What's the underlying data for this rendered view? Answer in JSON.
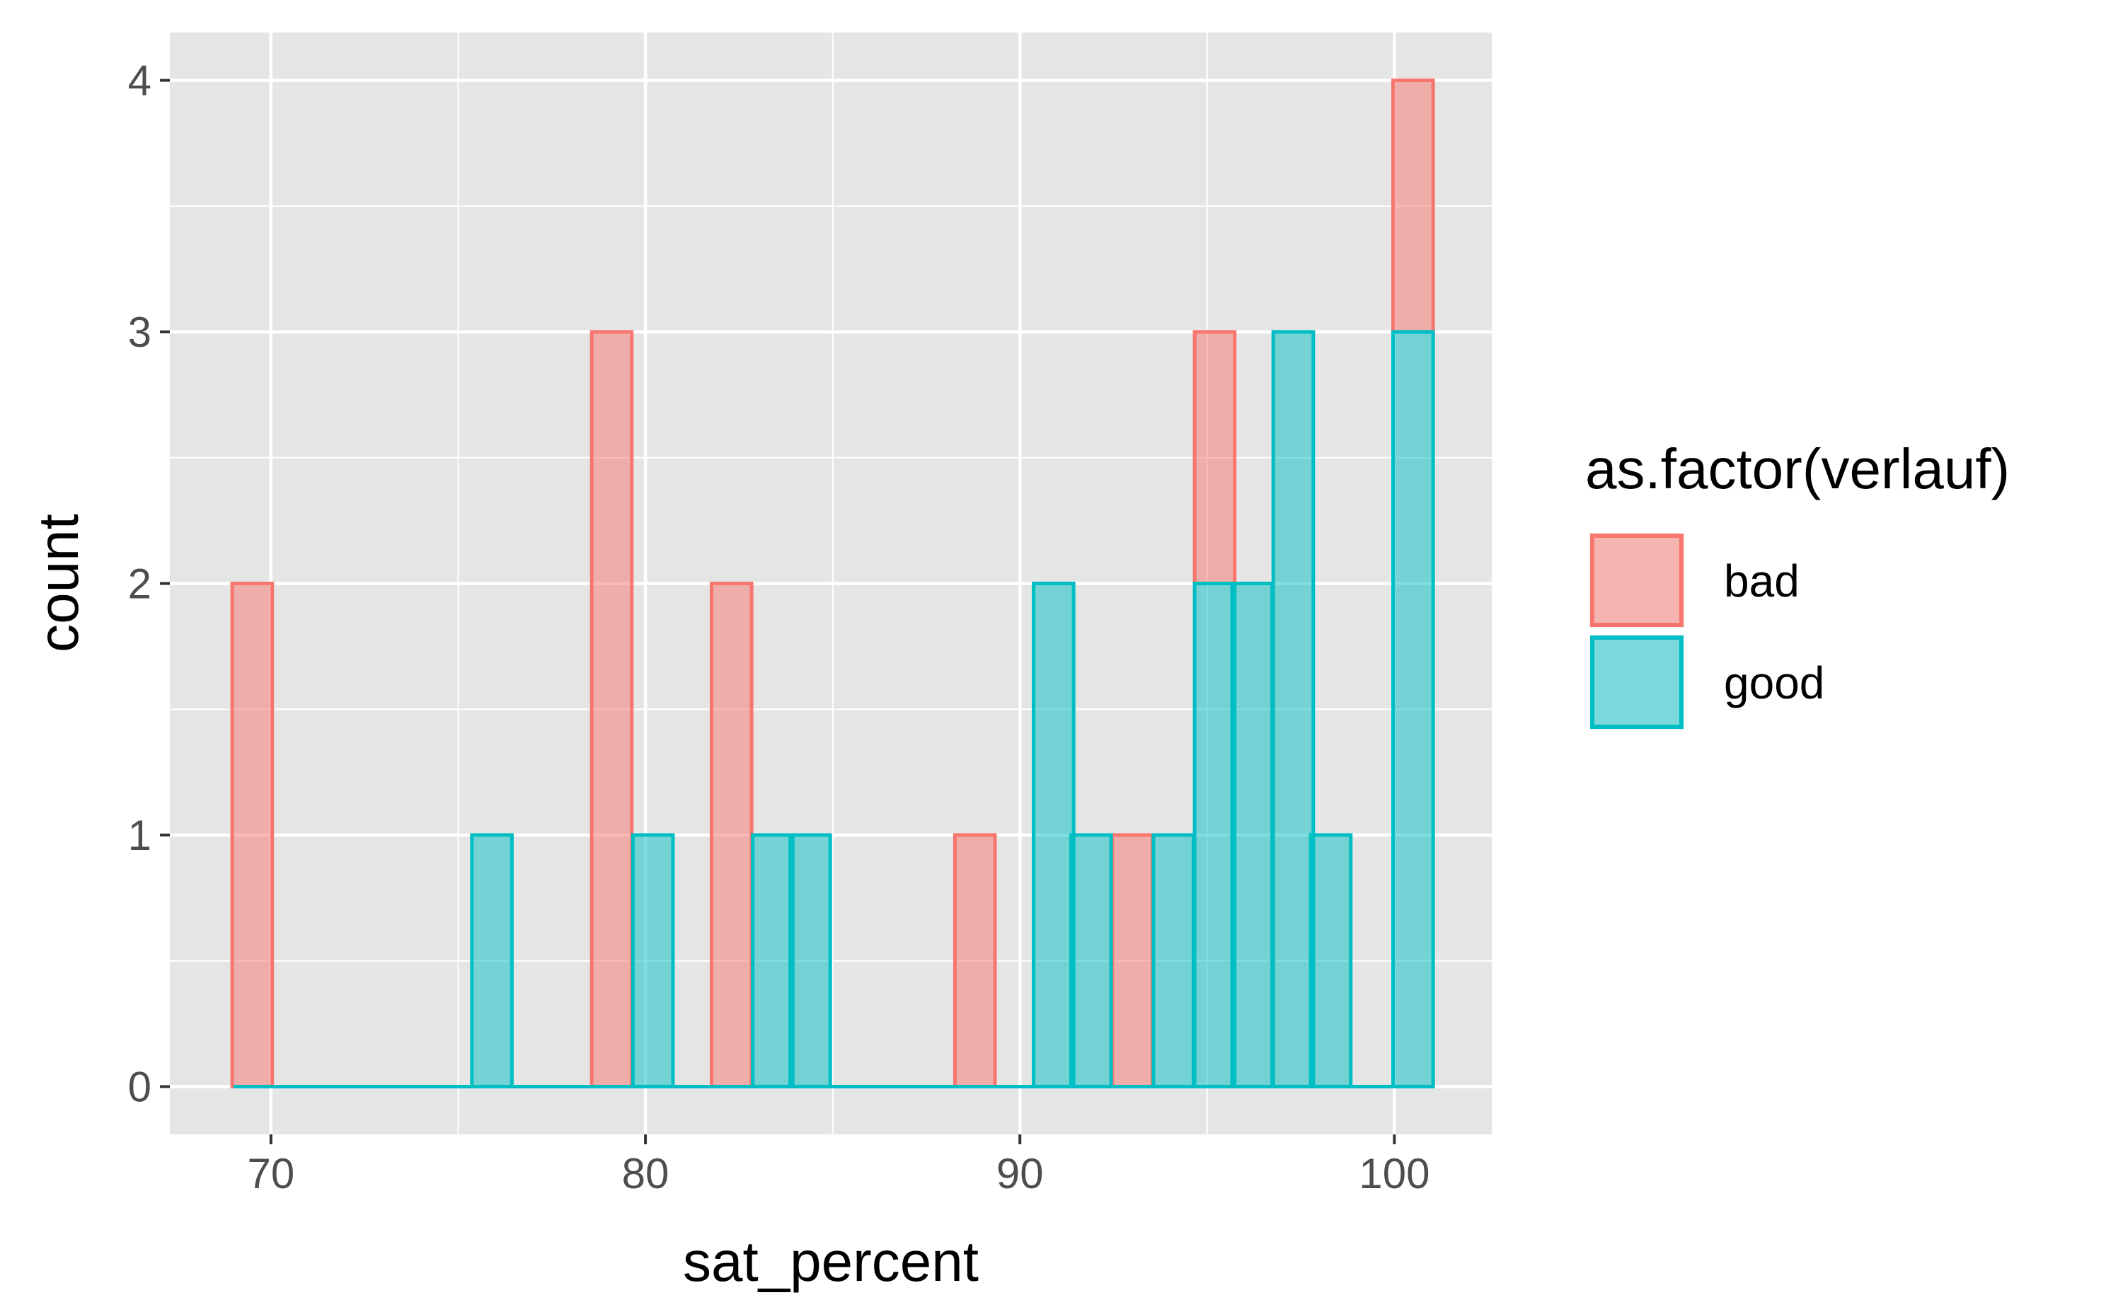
{
  "chart_data": {
    "type": "bar",
    "subtype": "histogram",
    "xlabel": "sat_percent",
    "ylabel": "count",
    "xlim": [
      67.3,
      102.6
    ],
    "ylim": [
      -0.19,
      4.19
    ],
    "x_ticks": [
      70,
      80,
      90,
      100
    ],
    "y_ticks": [
      0,
      1,
      2,
      3,
      4
    ],
    "bin_width": 1.07,
    "grid": true,
    "position": "stacked",
    "legend": {
      "title": "as.factor(verlauf)",
      "placement": "right"
    },
    "series": [
      {
        "name": "bad",
        "color": "#F8766D",
        "fill_alpha": 0.5,
        "bins": [
          {
            "x": 69.5,
            "count": 2
          },
          {
            "x": 79.1,
            "count": 3
          },
          {
            "x": 82.3,
            "count": 2
          },
          {
            "x": 88.8,
            "count": 1
          },
          {
            "x": 93.0,
            "count": 1
          },
          {
            "x": 95.2,
            "count": 1
          },
          {
            "x": 100.5,
            "count": 1
          }
        ]
      },
      {
        "name": "good",
        "color": "#00BFC4",
        "fill_alpha": 0.5,
        "bins": [
          {
            "x": 75.9,
            "count": 1
          },
          {
            "x": 80.2,
            "count": 1
          },
          {
            "x": 83.4,
            "count": 1
          },
          {
            "x": 84.4,
            "count": 1
          },
          {
            "x": 90.9,
            "count": 2
          },
          {
            "x": 91.9,
            "count": 1
          },
          {
            "x": 94.1,
            "count": 1
          },
          {
            "x": 95.2,
            "count": 2
          },
          {
            "x": 96.2,
            "count": 2
          },
          {
            "x": 97.3,
            "count": 3
          },
          {
            "x": 98.3,
            "count": 1
          },
          {
            "x": 100.5,
            "count": 3
          }
        ]
      }
    ],
    "baseline": {
      "from": 69.0,
      "to": 101.0
    }
  }
}
